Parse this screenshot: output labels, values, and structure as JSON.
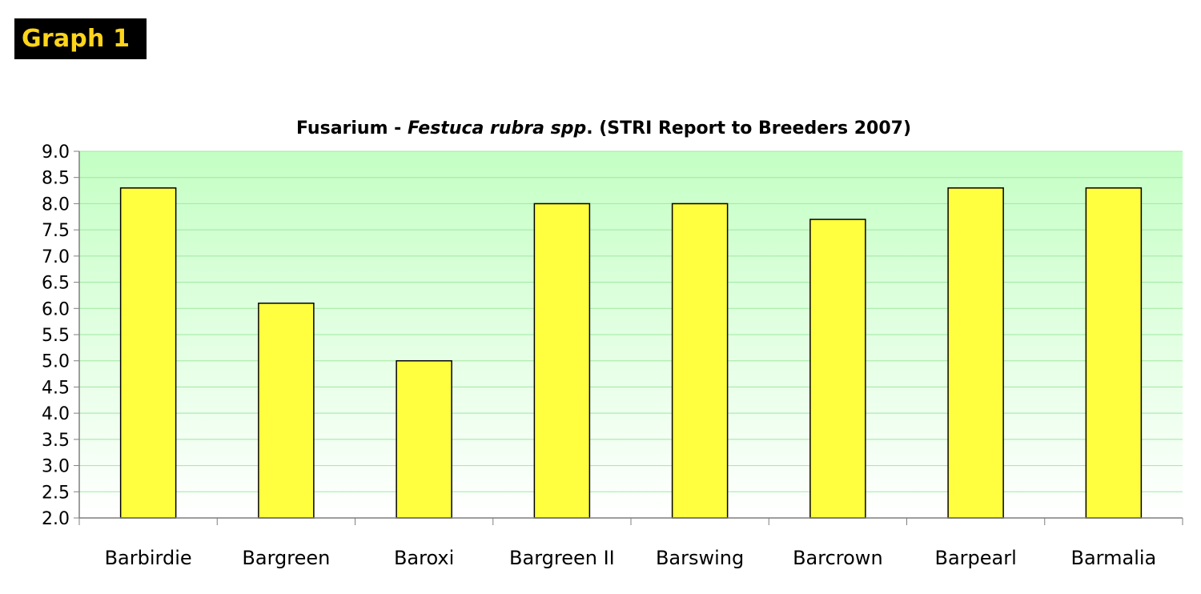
{
  "badge": {
    "label": "Graph 1"
  },
  "colors": {
    "bar": "#ffff40",
    "plot_top": "#c4ffc4",
    "plot_bottom": "#ffffff",
    "grid": "#9fe8a0",
    "badge_bg": "#000000",
    "badge_text": "#ffd51a"
  },
  "chart_data": {
    "type": "bar",
    "title_parts": {
      "lead": "Fusarium - ",
      "italic": "Festuca rubra spp",
      "tail": ". (STRI Report to Breeders 2007)"
    },
    "categories": [
      "Barbirdie",
      "Bargreen",
      "Baroxi",
      "Bargreen II",
      "Barswing",
      "Barcrown",
      "Barpearl",
      "Barmalia"
    ],
    "values": [
      8.3,
      6.1,
      5.0,
      8.0,
      8.0,
      7.7,
      8.3,
      8.3
    ],
    "ylim": [
      2.0,
      9.0
    ],
    "yticks": [
      "2.0",
      "2.5",
      "3.0",
      "3.5",
      "4.0",
      "4.5",
      "5.0",
      "5.5",
      "6.0",
      "6.5",
      "7.0",
      "7.5",
      "8.0",
      "8.5",
      "9.0"
    ],
    "grid": true,
    "legend": "none"
  }
}
